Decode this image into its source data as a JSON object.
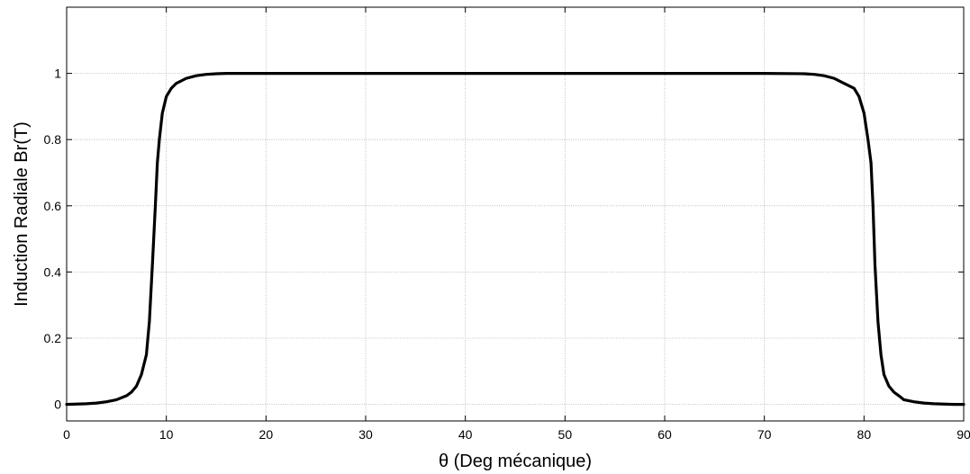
{
  "chart_data": {
    "type": "line",
    "xlabel": "θ (Deg mécanique)",
    "ylabel": "Induction Radiale Br(T)",
    "xlim": [
      0,
      90
    ],
    "ylim": [
      -0.05,
      1.2
    ],
    "xticks": [
      0,
      10,
      20,
      30,
      40,
      50,
      60,
      70,
      80,
      90
    ],
    "yticks": [
      0,
      0.2,
      0.4,
      0.6,
      0.8,
      1
    ],
    "xtick_labels": [
      "0",
      "10",
      "20",
      "30",
      "40",
      "50",
      "60",
      "70",
      "80",
      "90"
    ],
    "ytick_labels": [
      "0",
      "0.2",
      "0.4",
      "0.6",
      "0.8",
      "1"
    ],
    "grid": true,
    "line_color": "#000000",
    "series": [
      {
        "x": [
          0,
          2,
          3,
          4,
          5,
          6,
          6.5,
          7,
          7.5,
          8,
          8.3,
          8.6,
          8.9,
          9.1,
          9.3,
          9.6,
          10,
          10.5,
          11,
          12,
          13,
          14,
          15,
          16,
          20,
          30,
          40,
          50,
          60,
          70,
          74,
          75,
          76,
          77,
          78,
          79,
          79.5,
          80,
          80.4,
          80.7,
          80.9,
          81.1,
          81.4,
          81.7,
          82,
          82.5,
          83,
          83.5,
          84,
          85,
          86,
          87,
          88,
          89,
          90
        ],
        "y": [
          0,
          0.002,
          0.004,
          0.008,
          0.014,
          0.026,
          0.037,
          0.055,
          0.09,
          0.15,
          0.25,
          0.42,
          0.6,
          0.73,
          0.8,
          0.88,
          0.93,
          0.955,
          0.97,
          0.985,
          0.993,
          0.997,
          0.999,
          1.0,
          1.0,
          1.0,
          1.0,
          1.0,
          1.0,
          1.0,
          0.999,
          0.997,
          0.993,
          0.985,
          0.97,
          0.955,
          0.93,
          0.88,
          0.8,
          0.73,
          0.6,
          0.42,
          0.25,
          0.15,
          0.09,
          0.055,
          0.037,
          0.026,
          0.014,
          0.008,
          0.004,
          0.002,
          0.001,
          0.0,
          0.0
        ]
      }
    ]
  }
}
